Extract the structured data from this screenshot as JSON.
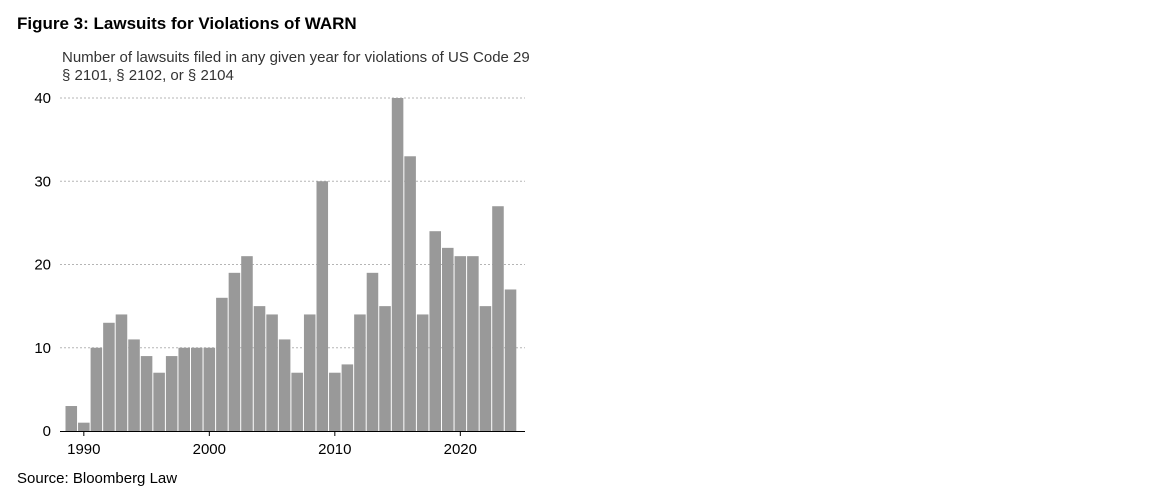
{
  "figure": {
    "title": "Figure 3: Lawsuits for Violations of WARN",
    "source": "Source: Bloomberg Law"
  },
  "chart_data": {
    "type": "bar",
    "title": "Figure 3: Lawsuits for Violations of WARN",
    "subtitle": "Number of lawsuits filed in any given year for violations of US Code 29 § 2101, § 2102, or § 2104",
    "xlabel": "",
    "ylabel": "",
    "ylim": [
      0,
      40
    ],
    "yticks": [
      0,
      10,
      20,
      30,
      40
    ],
    "xticks": [
      1990,
      2000,
      2010,
      2020
    ],
    "grid": true,
    "bar_color": "#999999",
    "categories": [
      1989,
      1990,
      1991,
      1992,
      1993,
      1994,
      1995,
      1996,
      1997,
      1998,
      1999,
      2000,
      2001,
      2002,
      2003,
      2004,
      2005,
      2006,
      2007,
      2008,
      2009,
      2010,
      2011,
      2012,
      2013,
      2014,
      2015,
      2016,
      2017,
      2018,
      2019,
      2020,
      2021,
      2022,
      2023,
      2024
    ],
    "values": [
      3,
      1,
      10,
      13,
      14,
      11,
      9,
      7,
      9,
      10,
      10,
      10,
      16,
      19,
      21,
      15,
      14,
      11,
      7,
      14,
      30,
      7,
      8,
      14,
      19,
      15,
      40,
      33,
      14,
      24,
      22,
      21,
      21,
      15,
      27,
      17
    ]
  }
}
